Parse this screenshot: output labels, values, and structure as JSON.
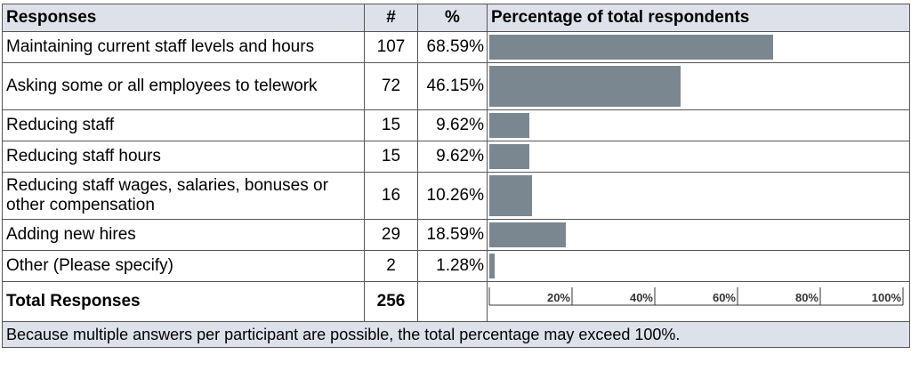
{
  "header": {
    "responses": "Responses",
    "count": "#",
    "percent": "%",
    "chart": "Percentage of total respondents"
  },
  "rows": [
    {
      "label": "Maintaining current staff levels and hours",
      "count": "107",
      "percent": "68.59%"
    },
    {
      "label": "Asking some or all employees to telework",
      "count": "72",
      "percent": "46.15%"
    },
    {
      "label": "Reducing staff",
      "count": "15",
      "percent": "9.62%"
    },
    {
      "label": "Reducing staff hours",
      "count": "15",
      "percent": "9.62%"
    },
    {
      "label": "Reducing staff wages, salaries, bonuses or other compensation",
      "count": "16",
      "percent": "10.26%"
    },
    {
      "label": "Adding new hires",
      "count": "29",
      "percent": "18.59%"
    },
    {
      "label": "Other (Please specify)",
      "count": "2",
      "percent": "1.28%"
    }
  ],
  "total": {
    "label": "Total Responses",
    "count": "256"
  },
  "footnote": "Because multiple answers per participant are possible, the total percentage may exceed 100%.",
  "chart_data": {
    "type": "bar",
    "categories": [
      "Maintaining current staff levels and hours",
      "Asking some or all employees to telework",
      "Reducing staff",
      "Reducing staff hours",
      "Reducing staff wages, salaries, bonuses or other compensation",
      "Adding new hires",
      "Other (Please specify)"
    ],
    "values": [
      68.59,
      46.15,
      9.62,
      9.62,
      10.26,
      18.59,
      1.28
    ],
    "xlim": [
      0,
      100
    ],
    "ticks": [
      "20%",
      "40%",
      "60%",
      "80%",
      "100%"
    ],
    "tick_values": [
      20,
      40,
      60,
      80,
      100
    ],
    "bar_color": "#7b8790",
    "header_color": "#dde2ea"
  }
}
